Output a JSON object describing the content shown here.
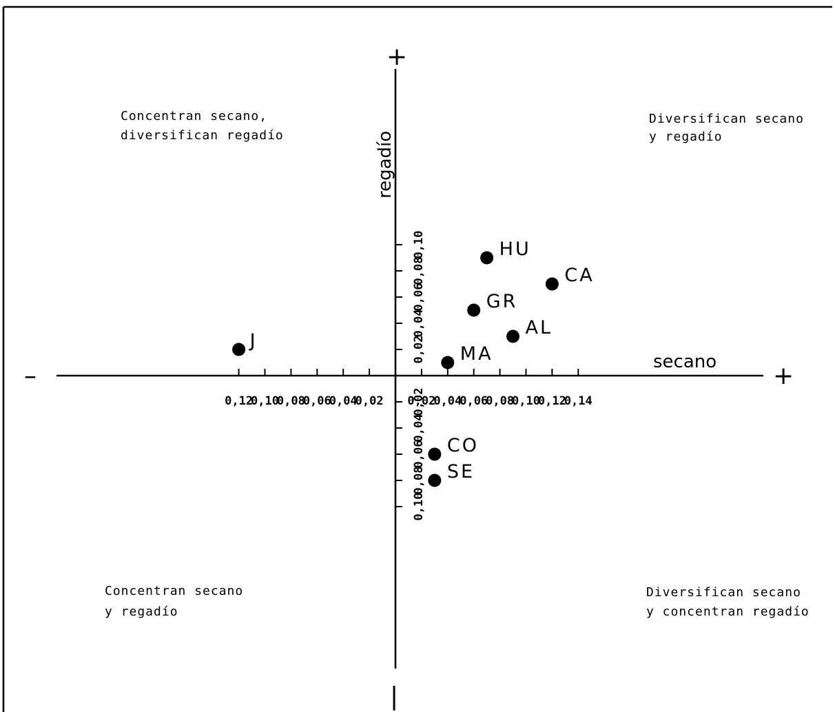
{
  "chart_data": {
    "type": "scatter",
    "xlabel": "secano",
    "ylabel": "regadío",
    "xlim": [
      -0.13,
      0.14
    ],
    "ylim": [
      -0.12,
      0.12
    ],
    "x_ticks": [
      {
        "value": -0.12,
        "label": "0,12"
      },
      {
        "value": -0.1,
        "label": "0,10"
      },
      {
        "value": -0.08,
        "label": "0,08"
      },
      {
        "value": -0.06,
        "label": "0,06"
      },
      {
        "value": -0.04,
        "label": "0,04"
      },
      {
        "value": -0.02,
        "label": "0,02"
      },
      {
        "value": 0.02,
        "label": "0,02"
      },
      {
        "value": 0.04,
        "label": "0,04"
      },
      {
        "value": 0.06,
        "label": "0,06"
      },
      {
        "value": 0.08,
        "label": "0,08"
      },
      {
        "value": 0.1,
        "label": "0,10"
      },
      {
        "value": 0.12,
        "label": "0,12"
      },
      {
        "value": 0.14,
        "label": "0,14"
      }
    ],
    "y_ticks": [
      {
        "value": 0.1,
        "label": "0,10"
      },
      {
        "value": 0.08,
        "label": "0,08"
      },
      {
        "value": 0.06,
        "label": "0,06"
      },
      {
        "value": 0.04,
        "label": "0,04"
      },
      {
        "value": 0.02,
        "label": "0,02"
      },
      {
        "value": -0.02,
        "label": "0,02"
      },
      {
        "value": -0.04,
        "label": "0,04"
      },
      {
        "value": -0.06,
        "label": "0,06"
      },
      {
        "value": -0.08,
        "label": "0,08"
      },
      {
        "value": -0.1,
        "label": "0,10"
      }
    ],
    "axis_signs": {
      "x_negative": "–",
      "x_positive": "+",
      "y_positive": "+",
      "y_negative": "|"
    },
    "points": [
      {
        "label": "HU",
        "x": 0.07,
        "y": 0.09
      },
      {
        "label": "CA",
        "x": 0.12,
        "y": 0.07
      },
      {
        "label": "GR",
        "x": 0.06,
        "y": 0.05
      },
      {
        "label": "AL",
        "x": 0.09,
        "y": 0.03
      },
      {
        "label": "MA",
        "x": 0.04,
        "y": 0.01
      },
      {
        "label": "J",
        "x": -0.12,
        "y": 0.02
      },
      {
        "label": "CO",
        "x": 0.03,
        "y": -0.06
      },
      {
        "label": "SE",
        "x": 0.03,
        "y": -0.08
      }
    ],
    "quadrant_labels": {
      "top_left": [
        "Concentran secano,",
        "diversifican regadío"
      ],
      "top_right": [
        "Diversifican secano",
        "y regadío"
      ],
      "bottom_left": [
        "Concentran secano",
        "y regadío"
      ],
      "bottom_right": [
        "Diversifican secano",
        "y concentran regadío"
      ]
    },
    "grid": false,
    "colors": {
      "ink": "#000000",
      "background": "#ffffff"
    }
  }
}
